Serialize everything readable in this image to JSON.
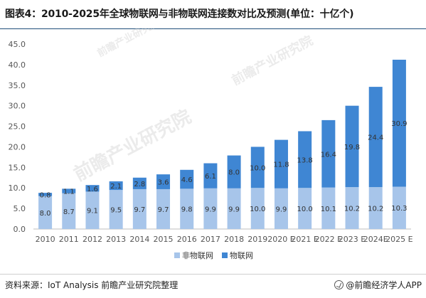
{
  "title": "图表4：2010-2025年全球物联网与非物联网连接数对比及预测(单位：十亿个)",
  "source": "资料来源：IoT Analysis 前瞻产业研究院整理",
  "brand": "@前瞻经济学人APP",
  "watermark": "前瞻产业研究院",
  "colors": {
    "non_iot": "#a7c5ea",
    "iot": "#3f86d3"
  },
  "chart_data": {
    "type": "bar",
    "stacked": true,
    "categories": [
      "2010",
      "2011",
      "2012",
      "2013",
      "2014",
      "2015",
      "2016",
      "2017",
      "2018",
      "2019",
      "2020 E",
      "2021 E",
      "2022 E",
      "2023 E",
      "2024E",
      "2025 E"
    ],
    "series": [
      {
        "name": "非物联网",
        "values": [
          8.0,
          8.7,
          9.1,
          9.5,
          9.7,
          9.7,
          9.8,
          9.9,
          9.9,
          10.0,
          9.9,
          10.0,
          10.1,
          10.2,
          10.2,
          10.3
        ]
      },
      {
        "name": "物联网",
        "values": [
          0.8,
          1.1,
          1.6,
          2.1,
          2.8,
          3.6,
          4.6,
          6.1,
          8.0,
          10.0,
          11.8,
          13.8,
          16.4,
          19.8,
          24.4,
          30.9
        ]
      }
    ],
    "ylim": [
      0,
      45
    ],
    "yticks": [
      "0.0",
      "5.0",
      "10.0",
      "15.0",
      "20.0",
      "25.0",
      "30.0",
      "35.0",
      "40.0",
      "45.0"
    ],
    "grid": false,
    "legend_position": "bottom"
  }
}
